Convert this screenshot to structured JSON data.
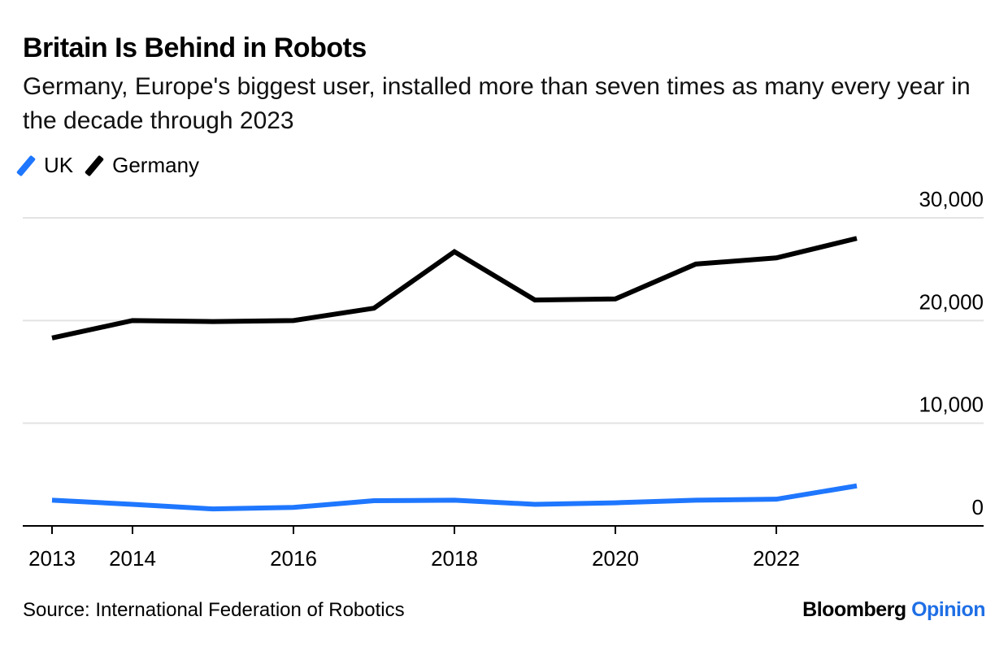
{
  "title": "Britain Is Behind in Robots",
  "subtitle": "Germany, Europe's biggest user, installed more than seven times as many every year in the decade through 2023",
  "source": "Source: International Federation of Robotics",
  "brand": {
    "name": "Bloomberg",
    "suffix": "Opinion",
    "suffix_color": "#1f6fe5"
  },
  "legend": [
    {
      "name": "UK",
      "color": "#1f77ff"
    },
    {
      "name": "Germany",
      "color": "#000000"
    }
  ],
  "chart_data": {
    "type": "line",
    "title": "Britain Is Behind in Robots",
    "xlabel": "",
    "ylabel": "",
    "x": [
      2013,
      2014,
      2015,
      2016,
      2017,
      2018,
      2019,
      2020,
      2021,
      2022,
      2023
    ],
    "xticks": [
      2013,
      2014,
      2016,
      2018,
      2020,
      2022
    ],
    "xticklabels": [
      "2013",
      "2014",
      "2016",
      "2018",
      "2020",
      "2022"
    ],
    "xlim": [
      2012.65,
      2024.5
    ],
    "ylim": [
      0,
      30000
    ],
    "yticks": [
      0,
      10000,
      20000,
      30000
    ],
    "yticklabels": [
      "0",
      "10,000",
      "20,000",
      "30,000"
    ],
    "grid": "horizontal",
    "y_axis_position": "right",
    "legend_position": "top-left",
    "series": [
      {
        "name": "UK",
        "color": "#1f77ff",
        "values": [
          2500,
          2100,
          1650,
          1800,
          2450,
          2500,
          2100,
          2250,
          2500,
          2600,
          3900
        ]
      },
      {
        "name": "Germany",
        "color": "#000000",
        "values": [
          18300,
          20000,
          19900,
          20000,
          21200,
          26700,
          22000,
          22100,
          25500,
          26100,
          28000
        ]
      }
    ]
  }
}
